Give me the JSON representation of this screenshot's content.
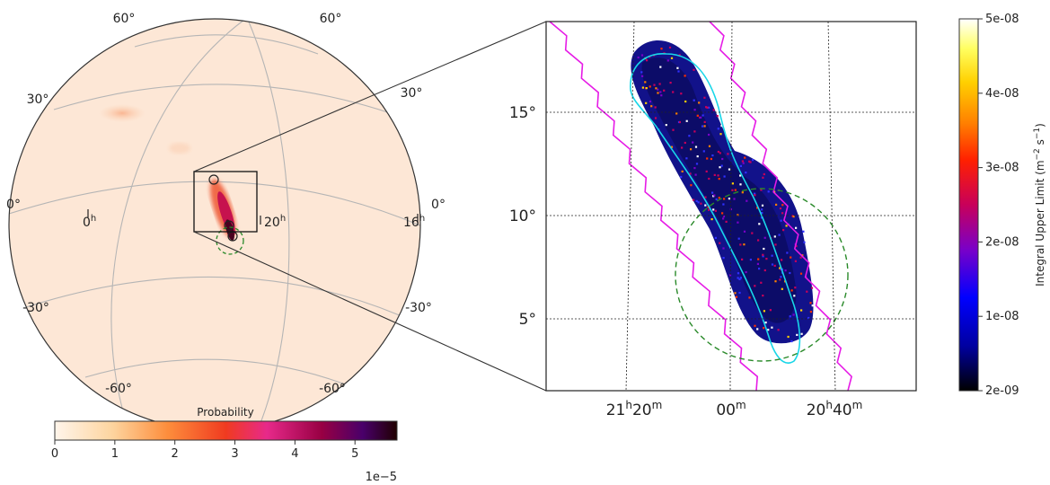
{
  "chart_data": [
    {
      "type": "heatmap",
      "projection": "orthographic sky globe",
      "colorbar": {
        "label": "Probability",
        "ticks": [
          "0",
          "1",
          "2",
          "3",
          "4",
          "5"
        ],
        "range": [
          0,
          5.7
        ],
        "exponent": "1e−5",
        "colormap": [
          "#fff5eb",
          "#fdd49e",
          "#fd8d3c",
          "#f03b20",
          "#e7298a",
          "#980043",
          "#49006a",
          "#200000"
        ]
      },
      "lat_labels": {
        "top_left": "60°",
        "top_right": "60°",
        "mid_left": "30°",
        "mid_right": "30°",
        "eq_left": "0°",
        "eq_right": "0°",
        "neg30_left": "-30°",
        "neg30_right": "-30°",
        "neg60_left": "-60°",
        "neg60_right": "-60°"
      },
      "ra_labels": [
        {
          "hour": "0",
          "unit": "h"
        },
        {
          "hour": "20",
          "unit": "h"
        },
        {
          "hour": "16",
          "unit": "h"
        }
      ]
    },
    {
      "type": "heatmap",
      "x_axis": {
        "ticks": [
          {
            "hour": "21",
            "hunit": "h",
            "min": "20",
            "munit": "m"
          },
          {
            "hour": "",
            "hunit": "",
            "min": "00",
            "munit": "m"
          },
          {
            "hour": "20",
            "hunit": "h",
            "min": "40",
            "munit": "m"
          }
        ]
      },
      "y_axis": {
        "ticks": [
          "15°",
          "10°",
          "5°"
        ],
        "range": [
          2.3,
          19.2
        ]
      },
      "colorbar": {
        "label_prefix": "Integral Upper Limit (m",
        "label_sup1": "−2",
        "label_mid": " s",
        "label_sup2": "−1",
        "label_suffix": ")",
        "ticks": [
          "5e-08",
          "4e-08",
          "3e-08",
          "2e-08",
          "1e-08",
          "2e-09"
        ],
        "range": [
          2e-09,
          5e-08
        ],
        "colormap": [
          "#000000",
          "#0000a0",
          "#0000ff",
          "#7a00c8",
          "#c8005a",
          "#ff2000",
          "#ff8000",
          "#ffd000",
          "#ffff60",
          "#ffffff"
        ]
      }
    }
  ]
}
